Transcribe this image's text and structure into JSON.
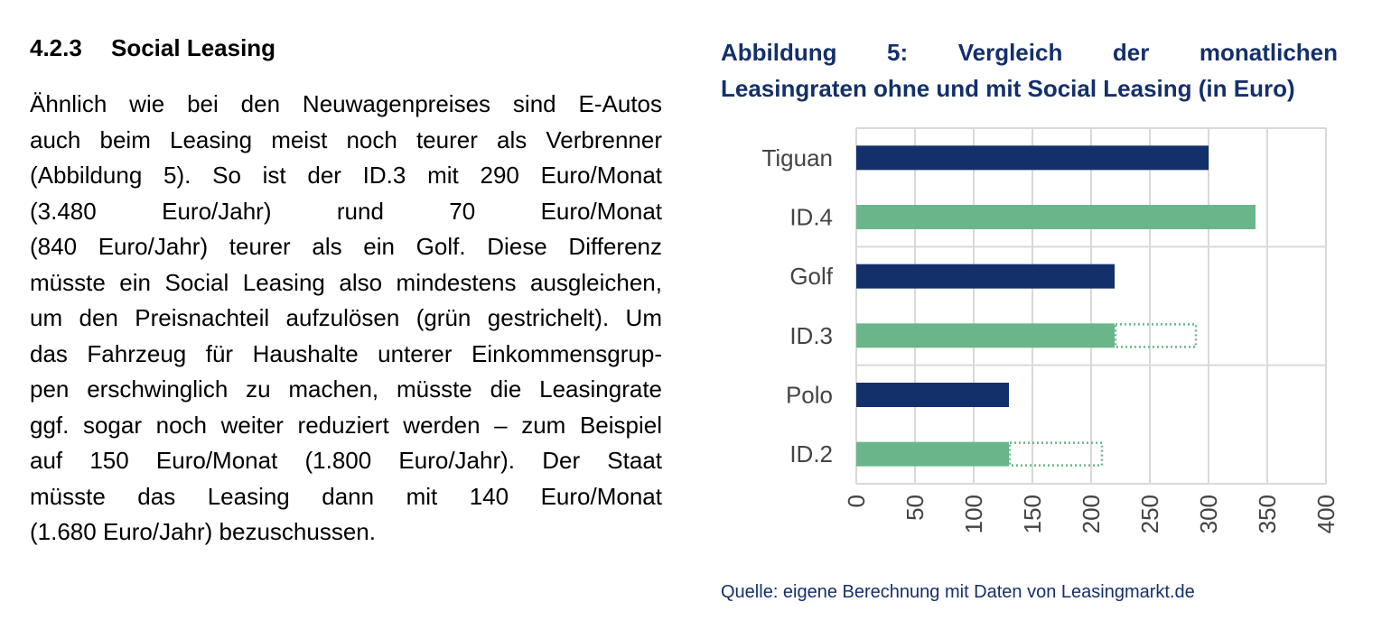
{
  "section": {
    "number": "4.2.3",
    "title": "Social Leasing"
  },
  "body_lines": [
    "Ähnlich wie bei den Neuwagenpreises sind E-Autos",
    "auch beim Leasing meist noch teurer als Verbrenner",
    "(Abbildung 5). So ist der ID.3 mit 290 Euro/Monat",
    "(3.480 Euro/Jahr) rund 70 Euro/Monat",
    "(840 Euro/Jahr) teurer als ein Golf. Diese Differenz",
    "müsste ein Social Leasing also mindestens ausgleichen,",
    "um den Preisnachteil aufzulösen (grün gestrichelt). Um",
    "das Fahrzeug für Haushalte unterer Einkommensgrup-",
    "pen erschwinglich zu machen, müsste die Leasingrate",
    "ggf. sogar noch weiter reduziert werden – zum Beispiel",
    "auf 150 Euro/Monat (1.800 Euro/Jahr). Der Staat",
    "müsste das Leasing dann mit 140 Euro/Monat",
    "(1.680 Euro/Jahr) bezuschussen."
  ],
  "figure": {
    "title_line1": "Abbildung 5: Vergleich der monatlichen",
    "title_line2": "Leasingraten ohne und mit Social Leasing (in Euro)",
    "source": "Quelle: eigene Berechnung mit Daten  von Leasingmarkt.de"
  },
  "chart_data": {
    "type": "bar",
    "orientation": "horizontal",
    "categories": [
      "Tiguan",
      "ID.4",
      "Golf",
      "ID.3",
      "Polo",
      "ID.2"
    ],
    "values": [
      300,
      340,
      220,
      220,
      130,
      130
    ],
    "dashed_extension": [
      null,
      null,
      null,
      290,
      null,
      210
    ],
    "bar_colors": [
      "#14306a",
      "#6bb58a",
      "#14306a",
      "#6bb58a",
      "#14306a",
      "#6bb58a"
    ],
    "xlim": [
      0,
      400
    ],
    "xticks": [
      0,
      50,
      100,
      150,
      200,
      250,
      300,
      350,
      400
    ],
    "grid": true
  },
  "colors": {
    "navy": "#14306a",
    "green": "#6bb58a",
    "grid": "#d9d9d9"
  }
}
